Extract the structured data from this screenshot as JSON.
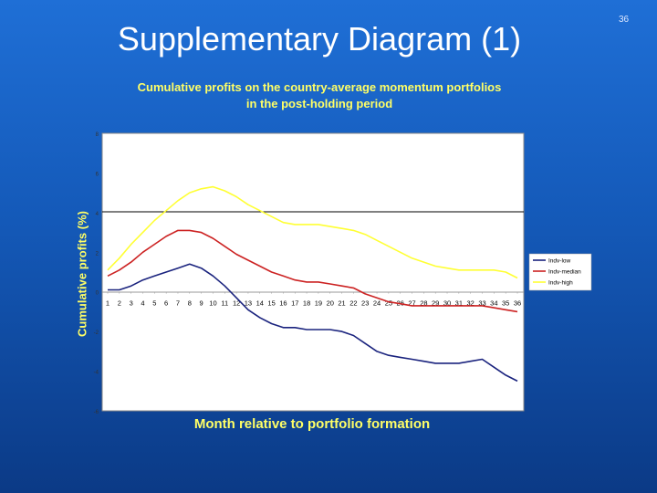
{
  "slide": {
    "title": "Supplementary Diagram (1)",
    "number": "36"
  },
  "chart_data": {
    "type": "line",
    "title": "Cumulative profits on the country-average momentum portfolios",
    "subtitle": "in the post-holding period",
    "xlabel": "Month relative to portfolio formation",
    "ylabel": "Cumulative profits (%)",
    "ylim": [
      -6,
      8
    ],
    "yticks": [
      "-6",
      "-4",
      "-2",
      "0",
      "2",
      "4",
      "6",
      "8"
    ],
    "x": [
      1,
      2,
      3,
      4,
      5,
      6,
      7,
      8,
      9,
      10,
      11,
      12,
      13,
      14,
      15,
      16,
      17,
      18,
      19,
      20,
      21,
      22,
      23,
      24,
      25,
      26,
      27,
      28,
      29,
      30,
      31,
      32,
      33,
      34,
      35,
      36
    ],
    "xticklabels": [
      "1",
      "2",
      "3",
      "4",
      "5",
      "6",
      "7",
      "8",
      "9",
      "10",
      "11",
      "12",
      "13",
      "14",
      "15",
      "16",
      "17",
      "18",
      "19",
      "20",
      "21",
      "22",
      "23",
      "24",
      "25",
      "26",
      "27",
      "28",
      "29",
      "30",
      "31",
      "32",
      "33",
      "34",
      "35",
      "36"
    ],
    "legend_position": "right",
    "series": [
      {
        "name": "Indv-low",
        "color": "#1a237e",
        "values": [
          0.1,
          0.1,
          0.3,
          0.6,
          0.8,
          1.0,
          1.2,
          1.4,
          1.2,
          0.8,
          0.3,
          -0.3,
          -0.9,
          -1.3,
          -1.6,
          -1.8,
          -1.8,
          -1.9,
          -1.9,
          -1.9,
          -2.0,
          -2.2,
          -2.6,
          -3.0,
          -3.2,
          -3.3,
          -3.4,
          -3.5,
          -3.6,
          -3.6,
          -3.6,
          -3.5,
          -3.4,
          -3.8,
          -4.2,
          -4.5
        ]
      },
      {
        "name": "Indv-median",
        "color": "#cc2222",
        "values": [
          0.8,
          1.1,
          1.5,
          2.0,
          2.4,
          2.8,
          3.1,
          3.1,
          3.0,
          2.7,
          2.3,
          1.9,
          1.6,
          1.3,
          1.0,
          0.8,
          0.6,
          0.5,
          0.5,
          0.4,
          0.3,
          0.2,
          -0.1,
          -0.3,
          -0.5,
          -0.6,
          -0.7,
          -0.7,
          -0.7,
          -0.7,
          -0.7,
          -0.7,
          -0.7,
          -0.8,
          -0.9,
          -1.0
        ]
      },
      {
        "name": "Indv-high",
        "color": "#ffff33",
        "values": [
          1.1,
          1.7,
          2.4,
          3.0,
          3.6,
          4.1,
          4.6,
          5.0,
          5.2,
          5.3,
          5.1,
          4.8,
          4.4,
          4.1,
          3.8,
          3.5,
          3.4,
          3.4,
          3.4,
          3.3,
          3.2,
          3.1,
          2.9,
          2.6,
          2.3,
          2.0,
          1.7,
          1.5,
          1.3,
          1.2,
          1.1,
          1.1,
          1.1,
          1.1,
          1.0,
          0.7
        ]
      }
    ]
  }
}
